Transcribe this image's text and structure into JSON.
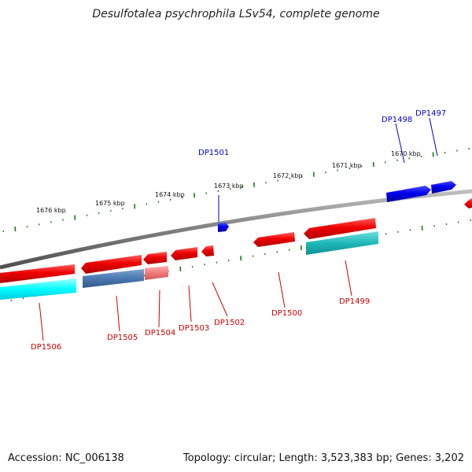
{
  "title": "Desulfotalea psychrophila LSv54, complete genome",
  "footer": {
    "accession": "Accession: NC_006138",
    "topology": "Topology: circular; Length: 3,523,383 bp; Genes: 3,202"
  },
  "kbp_labels": [
    "1676 kbp",
    "1675 kbp",
    "1674 kbp",
    "1673 kbp",
    "1672 kbp",
    "1671 kbp",
    "1670 kbp"
  ],
  "upper_genes": [
    "DP1501",
    "DP1498",
    "DP1497"
  ],
  "lower_genes": [
    "DP1506",
    "DP1505",
    "DP1504",
    "DP1503",
    "DP1502",
    "DP1500",
    "DP1499"
  ],
  "colors": {
    "forward": "#0000ee",
    "reverse": "#ee0000",
    "backbone": "#808080",
    "ticks": "#1a7a1a"
  }
}
